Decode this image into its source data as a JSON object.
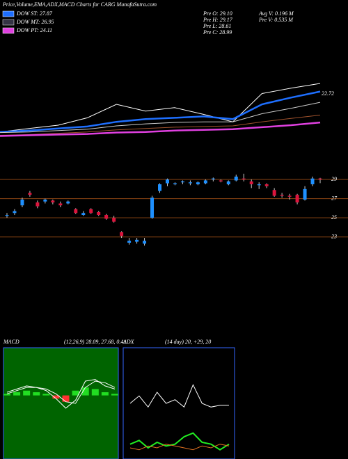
{
  "header": {
    "title": "Price,Volume,EMA,ADX,MACD Charts for CARG MunafaSutra.com",
    "legend": [
      {
        "label": "DOW ST: 27.87",
        "color": "#1e6fff"
      },
      {
        "label": "DOW MT: 26.95",
        "color": "#333344"
      },
      {
        "label": "DOW PT: 24.11",
        "color": "#e040e0"
      }
    ],
    "info": [
      "Pre O: 29.10",
      "Pre H: 29.17",
      "Pre L: 28.61",
      "Pre C: 28.99",
      "Avg V: 0.196  M",
      "Pre V: 0.535 M"
    ]
  },
  "chart_data": [
    {
      "type": "line",
      "annotation": "22.72",
      "ylim": [
        20.4,
        35.9
      ],
      "series": [
        {
          "color": "#ffffff",
          "values": [
            22.5,
            23.0,
            23.5,
            24.6,
            26.6,
            25.6,
            26.1,
            25.1,
            24.0,
            28.2,
            29.0,
            29.7
          ]
        },
        {
          "color": "#1e6fff",
          "values": [
            22.5,
            22.7,
            23.0,
            23.3,
            24.0,
            24.4,
            24.6,
            24.8,
            24.4,
            26.6,
            27.6,
            28.5
          ]
        },
        {
          "color": "#cccccc",
          "values": [
            22.4,
            22.5,
            22.7,
            22.9,
            23.4,
            23.7,
            23.9,
            24.0,
            24.0,
            25.2,
            26.0,
            26.9
          ]
        },
        {
          "color": "#a0522d",
          "values": [
            22.0,
            22.1,
            22.3,
            22.5,
            22.8,
            23.0,
            23.2,
            23.3,
            23.4,
            24.0,
            24.5,
            25.0
          ]
        },
        {
          "color": "#e040e0",
          "values": [
            21.9,
            22.0,
            22.1,
            22.2,
            22.4,
            22.5,
            22.7,
            22.8,
            22.9,
            23.2,
            23.5,
            23.9
          ]
        }
      ]
    },
    {
      "type": "candlestick",
      "ylim": [
        21.6,
        31.4
      ],
      "yticks": [
        23,
        25,
        27,
        29
      ],
      "up_color": "#1e90ff",
      "down_color": "#dc143c",
      "open": [
        25.2,
        25.5,
        26.3,
        27.6,
        26.6,
        26.7,
        26.8,
        26.5,
        26.5,
        25.9,
        25.3,
        25.9,
        25.6,
        25.3,
        25.0,
        23.5,
        22.4,
        22.5,
        22.3,
        25.0,
        27.8,
        28.6,
        28.5,
        28.7,
        28.6,
        28.5,
        28.6,
        29.0,
        28.9,
        28.5,
        28.9,
        29.1,
        28.8,
        28.4,
        28.5,
        27.9,
        27.4,
        27.3,
        27.4,
        26.9,
        28.5,
        29.1
      ],
      "close": [
        25.3,
        25.7,
        26.9,
        27.4,
        26.2,
        26.9,
        26.6,
        26.3,
        26.7,
        25.5,
        25.5,
        25.5,
        25.3,
        24.9,
        24.6,
        23.1,
        22.6,
        22.7,
        22.6,
        27.1,
        28.5,
        29.0,
        28.6,
        28.8,
        28.7,
        28.7,
        28.9,
        29.1,
        28.8,
        28.8,
        29.3,
        29.0,
        28.5,
        28.5,
        28.3,
        27.3,
        27.3,
        27.2,
        26.6,
        28.0,
        29.1,
        28.99
      ],
      "high": [
        25.5,
        25.9,
        27.1,
        27.8,
        26.8,
        27.0,
        26.9,
        26.7,
        26.8,
        26.0,
        25.7,
        26.0,
        25.7,
        25.4,
        25.2,
        23.6,
        22.9,
        22.9,
        22.9,
        27.3,
        28.6,
        29.1,
        28.7,
        28.9,
        28.9,
        28.8,
        29.0,
        29.2,
        29.0,
        28.9,
        29.5,
        29.6,
        29.0,
        28.7,
        28.6,
        28.1,
        27.6,
        27.5,
        27.5,
        28.3,
        29.3,
        29.17
      ],
      "low": [
        25.0,
        25.3,
        26.1,
        27.2,
        26.0,
        26.5,
        26.4,
        26.1,
        26.4,
        25.4,
        25.2,
        25.4,
        25.2,
        24.8,
        24.5,
        22.9,
        22.2,
        22.3,
        22.1,
        24.9,
        27.6,
        28.3,
        28.4,
        28.5,
        28.4,
        28.4,
        28.5,
        28.8,
        28.7,
        28.4,
        28.8,
        28.8,
        28.1,
        28.0,
        28.1,
        27.2,
        27.1,
        26.9,
        26.4,
        26.8,
        28.3,
        28.61
      ]
    },
    {
      "type": "macd",
      "title": "MACD",
      "subtitle": "(12,26,9) 28.09, 27.68, 0.41",
      "ylim": [
        -4,
        3
      ],
      "series": [
        {
          "color": "#ffffff",
          "values": [
            0.2,
            0.4,
            0.6,
            0.5,
            0.3,
            -0.2,
            -0.8,
            -0.3,
            0.9,
            1.0,
            0.6,
            0.4
          ]
        },
        {
          "color": "#ffffff",
          "values": [
            0.1,
            0.3,
            0.5,
            0.5,
            0.4,
            0.1,
            -0.4,
            -0.5,
            0.5,
            0.9,
            0.8,
            0.5
          ]
        }
      ],
      "histogram": [
        0.1,
        0.2,
        0.3,
        0.2,
        0.1,
        -0.2,
        -0.4,
        0.3,
        0.5,
        0.4,
        0.2,
        0.1
      ],
      "up_color": "#22dd22",
      "down_color": "#ff3030"
    },
    {
      "type": "adx",
      "title": "ADX",
      "subtitle": "(14 day) 20, +29, 20",
      "ylim": [
        0,
        60
      ],
      "series": [
        {
          "color": "#ffffff",
          "values": [
            30,
            34,
            28,
            36,
            30,
            32,
            28,
            40,
            30,
            28,
            29,
            29
          ]
        },
        {
          "color": "#22ee22",
          "values": [
            8,
            10,
            6,
            9,
            7,
            8,
            12,
            14,
            9,
            8,
            5,
            8
          ]
        },
        {
          "color": "#e07020",
          "values": [
            6,
            5,
            7,
            6,
            8,
            7,
            6,
            5,
            7,
            6,
            8,
            7
          ]
        }
      ]
    }
  ]
}
